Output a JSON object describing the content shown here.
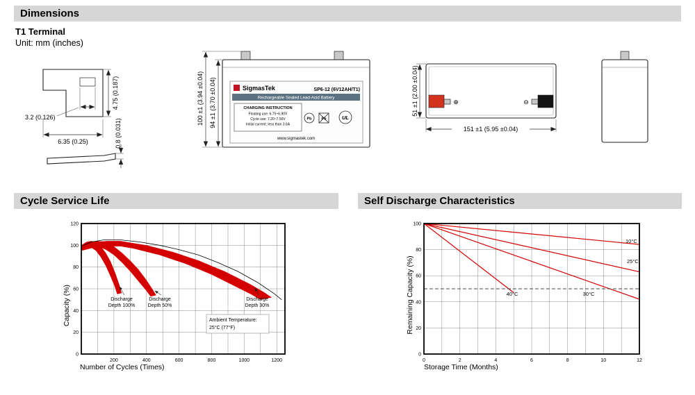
{
  "headers": {
    "dimensions": "Dimensions",
    "cycle_service_life": "Cycle Service Life",
    "self_discharge": "Self Discharge Characteristics"
  },
  "dimensions_section": {
    "terminal_title": "T1 Terminal",
    "unit_note": "Unit: mm (inches)",
    "terminal_dims": {
      "height": "4.75 (0.187)",
      "hole_width": "3.2 (0.126)",
      "tab_width": "6.35 (0.25)",
      "thickness": "0.8 (0.031)"
    },
    "front_view": {
      "total_height": "100 ±1 (3.94 ±0.04)",
      "container_height": "94 ±1 (3.70 ±0.04)"
    },
    "top_view": {
      "width": "151 ±1 (5.95 ±0.04)",
      "depth": "51 ±1 (2.00 ±0.04)",
      "plus_symbol": "⊕",
      "minus_symbol": "⊖"
    },
    "battery_label": {
      "brand": "SigmasTek",
      "model": "SP6-12 (6V12AH/T1)",
      "subtitle": "Rechargeable Sealed Lead-Acid Battery",
      "charging_title": "CHARGING INSTRUCTION",
      "charging_line1": "Floating use: 6.75~6.90V",
      "charging_line2": "Cycle use: 7.20~7.50V",
      "charging_line3": "Initial current: less than 3.6A",
      "pb1": "Pb",
      "pb2": "Pb",
      "ul_mark": "UL",
      "website": "www.sigmastek.com"
    }
  },
  "chart_data": [
    {
      "id": "cycle_service_life",
      "type": "area",
      "title": "Cycle Service Life",
      "xlabel": "Number of Cycles (Times)",
      "ylabel": "Capacity (%)",
      "xlim": [
        0,
        1250
      ],
      "ylim": [
        0,
        120
      ],
      "xticks": [
        200,
        400,
        600,
        800,
        1000,
        1200
      ],
      "yticks": [
        0,
        20,
        40,
        60,
        80,
        100,
        120
      ],
      "x_grid_step": 100,
      "y_grid_step": 20,
      "grid": true,
      "legend_position": "none",
      "series_color": "#d40000",
      "bands": [
        {
          "name": "Discharge Depth 100%",
          "top": [
            [
              0,
              100
            ],
            [
              30,
              103
            ],
            [
              60,
              104
            ],
            [
              90,
              103
            ],
            [
              120,
              99
            ],
            [
              150,
              93
            ],
            [
              180,
              85
            ],
            [
              210,
              74
            ],
            [
              235,
              63
            ],
            [
              248,
              56
            ]
          ],
          "bottom": [
            [
              0,
              95
            ],
            [
              30,
              98
            ],
            [
              60,
              98
            ],
            [
              90,
              95
            ],
            [
              120,
              89
            ],
            [
              150,
              81
            ],
            [
              180,
              71
            ],
            [
              205,
              62
            ],
            [
              220,
              55
            ]
          ]
        },
        {
          "name": "Discharge Depth 50%",
          "top": [
            [
              0,
              100
            ],
            [
              50,
              103
            ],
            [
              100,
              104
            ],
            [
              150,
              103
            ],
            [
              200,
              99
            ],
            [
              250,
              93
            ],
            [
              300,
              86
            ],
            [
              350,
              78
            ],
            [
              400,
              68
            ],
            [
              440,
              59
            ],
            [
              460,
              54
            ]
          ],
          "bottom": [
            [
              0,
              95
            ],
            [
              50,
              98
            ],
            [
              100,
              99
            ],
            [
              150,
              96
            ],
            [
              200,
              91
            ],
            [
              250,
              84
            ],
            [
              300,
              76
            ],
            [
              350,
              67
            ],
            [
              400,
              58
            ],
            [
              425,
              53
            ]
          ]
        },
        {
          "name": "Discharge Depth 30%",
          "top": [
            [
              0,
              100
            ],
            [
              80,
              103
            ],
            [
              160,
              104
            ],
            [
              240,
              104
            ],
            [
              320,
              102
            ],
            [
              400,
              100
            ],
            [
              480,
              97
            ],
            [
              560,
              94
            ],
            [
              640,
              90
            ],
            [
              720,
              86
            ],
            [
              800,
              81
            ],
            [
              880,
              76
            ],
            [
              960,
              70
            ],
            [
              1040,
              64
            ],
            [
              1120,
              57
            ],
            [
              1170,
              52
            ]
          ],
          "bottom": [
            [
              0,
              95
            ],
            [
              80,
              98
            ],
            [
              160,
              99
            ],
            [
              240,
              99
            ],
            [
              320,
              97
            ],
            [
              400,
              94
            ],
            [
              480,
              91
            ],
            [
              560,
              87
            ],
            [
              640,
              83
            ],
            [
              720,
              78
            ],
            [
              800,
              73
            ],
            [
              880,
              67
            ],
            [
              960,
              61
            ],
            [
              1040,
              55
            ],
            [
              1100,
              50
            ]
          ]
        }
      ],
      "outline": [
        [
          0,
          99
        ],
        [
          60,
          103
        ],
        [
          140,
          105
        ],
        [
          240,
          105
        ],
        [
          360,
          103
        ],
        [
          480,
          100
        ],
        [
          600,
          96
        ],
        [
          720,
          91
        ],
        [
          840,
          84
        ],
        [
          960,
          76
        ],
        [
          1080,
          66
        ],
        [
          1180,
          56
        ],
        [
          1230,
          50
        ]
      ],
      "annotations": [
        {
          "lines": [
            "Discharge",
            "Depth 100%"
          ]
        },
        {
          "lines": [
            "Discharge",
            "Depth 50%"
          ]
        },
        {
          "lines": [
            "Discharge",
            "Depth 30%"
          ]
        },
        {
          "lines": [
            "Ambient Temperature:",
            "25°C (77°F)"
          ],
          "boxed": true
        }
      ]
    },
    {
      "id": "self_discharge_characteristics",
      "type": "line",
      "title": "Self Discharge Characteristics",
      "xlabel": "Storage Time (Months)",
      "ylabel": "Remaining Capacity (%)",
      "xlim": [
        0,
        12
      ],
      "ylim": [
        0,
        100
      ],
      "xticks": [
        0,
        2,
        4,
        6,
        8,
        10,
        12
      ],
      "yticks": [
        0,
        20,
        40,
        60,
        80,
        100
      ],
      "x_grid_step": 1,
      "y_grid_step": 20,
      "grid": true,
      "legend_position": "inline-labels",
      "series_color": "#d40000",
      "series": [
        {
          "name": "10°C",
          "points": [
            [
              0,
              100
            ],
            [
              12,
              84
            ]
          ]
        },
        {
          "name": "25°C",
          "points": [
            [
              0,
              100
            ],
            [
              12,
              63
            ]
          ]
        },
        {
          "name": "30°C",
          "points": [
            [
              0,
              100
            ],
            [
              12,
              42
            ]
          ]
        },
        {
          "name": "40°C",
          "points": [
            [
              0,
              100
            ],
            [
              5,
              47
            ]
          ]
        }
      ],
      "dashed_line_y": 50
    }
  ]
}
